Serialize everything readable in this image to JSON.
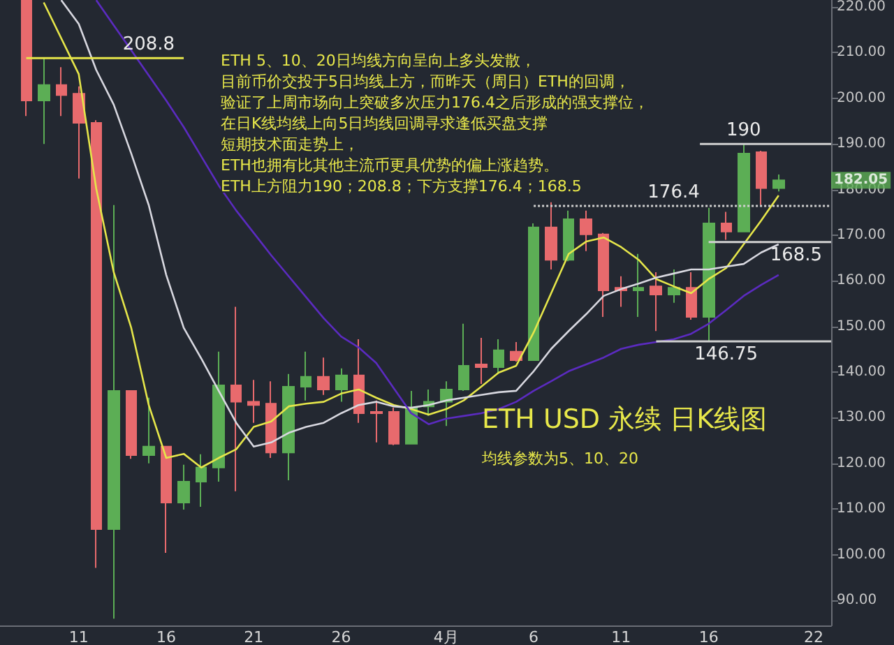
{
  "chart_data": {
    "type": "candlestick",
    "title": "ETH USD 永续 日K线图",
    "subtitle": "均线参数为5、10、20",
    "x": [
      "--03-08",
      "--03-09",
      "--03-10",
      "--03-11",
      "--03-12",
      "--03-13",
      "--03-14",
      "--03-15",
      "--03-16",
      "--03-17",
      "--03-18",
      "--03-19",
      "--03-20",
      "--03-21",
      "--03-22",
      "--03-23",
      "--03-24",
      "--03-25",
      "--03-26",
      "--03-27",
      "--03-28",
      "--03-29",
      "--03-30",
      "--03-31",
      "--04-01",
      "--04-02",
      "--04-03",
      "--04-04",
      "--04-05",
      "--04-06",
      "--04-07",
      "--04-08",
      "--04-09",
      "--04-10",
      "--04-11",
      "--04-12",
      "--04-13",
      "--04-14",
      "--04-15",
      "--04-16",
      "--04-17",
      "--04-18",
      "--04-19",
      "--04-20"
    ],
    "ohlc": [
      [
        221.5,
        221.5,
        196.1,
        199.5
      ],
      [
        199.5,
        208.7,
        190,
        202.9
      ],
      [
        202.9,
        206.8,
        196.1,
        200.7
      ],
      [
        201,
        202.6,
        182.4,
        194.6
      ],
      [
        194.6,
        195.2,
        97.1,
        105.6
      ],
      [
        105.6,
        176.6,
        86,
        135.9
      ],
      [
        135.9,
        136,
        121,
        121.8
      ],
      [
        121.8,
        134.4,
        120,
        123.7
      ],
      [
        123.7,
        123.7,
        100.4,
        111.4
      ],
      [
        111.4,
        119.7,
        109.9,
        116
      ],
      [
        116,
        122,
        110.5,
        119.1
      ],
      [
        119.1,
        144.5,
        116,
        137.1
      ],
      [
        137.1,
        154.3,
        113.9,
        133.5
      ],
      [
        133.5,
        138.3,
        128.9,
        132.8
      ],
      [
        133.1,
        138,
        121.2,
        122.4
      ],
      [
        122.4,
        139.6,
        116.3,
        136.8
      ],
      [
        136.8,
        144.5,
        133.8,
        139
      ],
      [
        139,
        143.2,
        135,
        136.2
      ],
      [
        136.2,
        140.8,
        133.5,
        139.3
      ],
      [
        139.3,
        147.2,
        128.9,
        131
      ],
      [
        131.3,
        133.8,
        124.6,
        131
      ],
      [
        131.3,
        132.2,
        124,
        124.3
      ],
      [
        124.3,
        135.9,
        124.3,
        132.2
      ],
      [
        132.5,
        136.2,
        130.4,
        133.5
      ],
      [
        133.5,
        138,
        128.2,
        136.2
      ],
      [
        136.2,
        150.6,
        135.9,
        141.4
      ],
      [
        141.7,
        147.5,
        137.4,
        141.1
      ],
      [
        141.1,
        147.2,
        139.9,
        144.8
      ],
      [
        144.5,
        146.6,
        142.3,
        142.6
      ],
      [
        142.6,
        172.6,
        142.6,
        171.7
      ],
      [
        171.7,
        177.2,
        162.5,
        164.6
      ],
      [
        164.6,
        175.4,
        164.3,
        173.5
      ],
      [
        173.5,
        175.4,
        166.5,
        170.2
      ],
      [
        170.2,
        170.5,
        152.1,
        157.9
      ],
      [
        158.5,
        161,
        154.3,
        157.9
      ],
      [
        157.9,
        165.9,
        152.1,
        158.5
      ],
      [
        158.8,
        161.9,
        149,
        157
      ],
      [
        157,
        162.5,
        155.2,
        158.5
      ],
      [
        158.5,
        161.9,
        151.5,
        152.1
      ],
      [
        152.1,
        176,
        146.75,
        172.6
      ],
      [
        172.6,
        175.1,
        169,
        170.8
      ],
      [
        170.8,
        190,
        170.8,
        187.9
      ],
      [
        188.2,
        188.5,
        176.6,
        180.3
      ],
      [
        180.3,
        183.3,
        179.6,
        182.05
      ]
    ],
    "series": [
      {
        "type": "line",
        "color": "#e6e64a",
        "x": [
          "--03-09",
          "--03-11",
          "--03-12",
          "--03-13",
          "--03-14",
          "--03-15",
          "--03-16",
          "--03-17",
          "--03-18",
          "--03-19",
          "--03-20",
          "--03-21",
          "--03-22",
          "--03-23",
          "--03-24",
          "--03-25",
          "--03-26",
          "--03-27",
          "--03-28",
          "--03-29",
          "--03-30",
          "--03-31",
          "--04-01",
          "--04-02",
          "--04-03",
          "--04-04",
          "--04-05",
          "--04-06",
          "--04-07",
          "--04-08",
          "--04-09",
          "--04-10",
          "--04-11",
          "--04-12",
          "--04-13",
          "--04-14",
          "--04-15",
          "--04-16",
          "--04-17",
          "--04-18",
          "--04-19",
          "--04-20"
        ],
        "values": [
          221,
          205.3,
          180.2,
          161.9,
          149.7,
          132.8,
          121.2,
          122.1,
          119.1,
          121.2,
          123.1,
          128,
          129.2,
          132.5,
          133.1,
          133.5,
          135.3,
          136.2,
          134.4,
          132.8,
          131.9,
          130.7,
          131.9,
          133.8,
          136.8,
          139.9,
          141.4,
          148.7,
          157.3,
          165.9,
          168.6,
          169.5,
          167.4,
          164.6,
          160.4,
          158.8,
          157.3,
          160.4,
          162.8,
          168,
          173.2,
          178.7
        ]
      },
      {
        "type": "line",
        "color": "#d8d8e0",
        "x": [
          "--03-10",
          "--03-11",
          "--03-12",
          "--03-13",
          "--03-14",
          "--03-15",
          "--03-16",
          "--03-17",
          "--03-18",
          "--03-19",
          "--03-20",
          "--03-21",
          "--03-22",
          "--03-23",
          "--03-24",
          "--03-25",
          "--03-26",
          "--03-27",
          "--03-28",
          "--03-29",
          "--03-30",
          "--03-31",
          "--04-01",
          "--04-02",
          "--04-03",
          "--04-04",
          "--04-05",
          "--04-06",
          "--04-07",
          "--04-08",
          "--04-09",
          "--04-10",
          "--04-11",
          "--04-12",
          "--04-13",
          "--04-14",
          "--04-15",
          "--04-16",
          "--04-17",
          "--04-18",
          "--04-19",
          "--04-20"
        ],
        "values": [
          221.5,
          216.3,
          206.2,
          198.6,
          187.9,
          176.6,
          161.3,
          149.7,
          143,
          135.9,
          128.9,
          123.7,
          124.6,
          126.7,
          128,
          128.9,
          131,
          132.8,
          133.5,
          132.5,
          132.2,
          132.8,
          133.8,
          134.4,
          135,
          135.6,
          135.9,
          140.2,
          145.1,
          149,
          152.7,
          156.7,
          158.2,
          159.4,
          160.7,
          161.6,
          162.5,
          162.5,
          163.1,
          163.7,
          166.2,
          168
        ]
      },
      {
        "type": "line",
        "color": "#5b2bc0",
        "x": [
          "--03-12",
          "--03-13",
          "--03-14",
          "--03-15",
          "--03-16",
          "--03-17",
          "--03-18",
          "--03-19",
          "--03-20",
          "--03-21",
          "--03-22",
          "--03-23",
          "--03-24",
          "--03-25",
          "--03-26",
          "--03-27",
          "--03-28",
          "--03-29",
          "--03-30",
          "--03-31",
          "--04-01",
          "--04-02",
          "--04-03",
          "--04-04",
          "--04-05",
          "--04-06",
          "--04-07",
          "--04-08",
          "--04-09",
          "--04-10",
          "--04-11",
          "--04-12",
          "--04-13",
          "--04-14",
          "--04-15",
          "--04-16",
          "--04-17",
          "--04-18",
          "--04-19",
          "--04-20"
        ],
        "values": [
          221.5,
          216,
          210.5,
          205,
          199.5,
          193.7,
          187.3,
          180.9,
          175.4,
          170.5,
          165.6,
          161,
          156.4,
          151.8,
          147.8,
          145.4,
          142,
          136.5,
          131,
          128.6,
          129.8,
          130.4,
          131,
          131.9,
          133.5,
          135.9,
          138,
          140.2,
          141.7,
          143.2,
          145.1,
          146,
          146.6,
          147.2,
          148.4,
          150.6,
          153.6,
          156.7,
          159.1,
          161.3
        ]
      },
      {
        "type": "line",
        "color": "#e6e64a",
        "x": [
          "--03-08",
          "--03-15",
          "--03-17"
        ],
        "values": [
          208.8,
          208.8,
          208.8
        ],
        "value_labels": [
          null,
          "208.8",
          null
        ]
      },
      {
        "type": "line",
        "color": "#d0d0d0",
        "x": [
          "--04-15T12:00",
          "--04-18",
          "--04-23"
        ],
        "values": [
          190,
          190,
          190
        ],
        "value_labels": [
          null,
          "190",
          null
        ]
      },
      {
        "type": "line",
        "color": "#d0d0d0",
        "line_style": "dotted",
        "x": [
          "--04-06",
          "--04-14",
          "--04-23"
        ],
        "values": [
          176.4,
          176.4,
          176.4
        ],
        "value_labels": [
          null,
          "176.4",
          null
        ]
      },
      {
        "type": "line",
        "color": "#d0d0d0",
        "x": [
          "--04-16",
          "--04-21",
          "--04-23"
        ],
        "values": [
          168.5,
          168.5,
          168.5
        ],
        "value_labels": [
          null,
          "168.5",
          null
        ]
      },
      {
        "type": "line",
        "color": "#d0d0d0",
        "x": [
          "--04-13",
          "--04-17",
          "--04-23"
        ],
        "values": [
          146.75,
          146.75,
          146.75
        ],
        "value_labels": [
          null,
          "146.75",
          null
        ]
      }
    ],
    "marker": "none",
    "xlim": [
      "--03-06T12:00",
      "--04-23"
    ],
    "xticks": [
      {
        "value": "--03-11",
        "label": "11"
      },
      {
        "value": "--03-16",
        "label": "16"
      },
      {
        "value": "--03-21",
        "label": "21"
      },
      {
        "value": "--03-26",
        "label": "26"
      },
      {
        "value": "--04-01",
        "label": "4月"
      },
      {
        "value": "--04-06",
        "label": "6"
      },
      {
        "value": "--04-11",
        "label": "11"
      },
      {
        "value": "--04-16",
        "label": "16"
      },
      {
        "value": "--04-22",
        "label": "22"
      }
    ],
    "ylim": [
      84.5,
      221.5
    ],
    "yticks": [
      {
        "value": 90,
        "label": "90.00"
      },
      {
        "value": 100,
        "label": "100.00"
      },
      {
        "value": 110,
        "label": "110.00"
      },
      {
        "value": 120,
        "label": "120.00"
      },
      {
        "value": 130,
        "label": "130.00"
      },
      {
        "value": 140,
        "label": "140.00"
      },
      {
        "value": 150,
        "label": "150.00"
      },
      {
        "value": 160,
        "label": "160.00"
      },
      {
        "value": 170,
        "label": "170.00"
      },
      {
        "value": 180,
        "label": "180.00"
      },
      {
        "value": 190,
        "label": "190.00"
      },
      {
        "value": 200,
        "label": "200.00"
      },
      {
        "value": 210,
        "label": "210.00"
      },
      {
        "value": 220,
        "label": "220.00"
      }
    ],
    "annotations": [
      "ETH 5、10、20日均线方向呈向上多头发散，",
      "目前币价交投于5日均线上方，而昨天（周日）ETH的回调，",
      "验证了上周市场向上突破多次压力176.4之后形成的强支撑位，",
      "在日K线均线上向5日均线回调寻求逢低买盘支撑",
      "短期技术面走势上，",
      "ETH也拥有比其他主流币更具优势的偏上涨趋势。",
      "ETH上方阻力190；208.8；下方支撑176.4；168.5",
      "182.05"
    ]
  }
}
